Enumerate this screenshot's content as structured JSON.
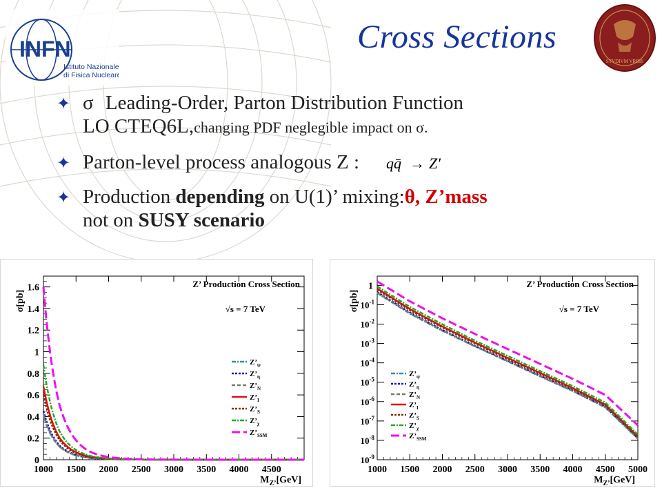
{
  "slide": {
    "title": "Cross Sections",
    "bullets": {
      "b1_sigma": "σ",
      "b1_text": "Leading-Order, Parton Distribution Function",
      "b1_line2_main": "LO CTEQ6L,",
      "b1_line2_small": "changing PDF neglegible impact on σ.",
      "b2_text": "Parton-level process analogous Z :",
      "b3_pre": "Production ",
      "b3_bold": "depending",
      "b3_mid": " on U(1)’ mixing:",
      "b3_red": "θ,  Z’mass",
      "b4_pre": "not  on ",
      "b4_bold": "SUSY scenario"
    },
    "formula": {
      "lhs": "qq̄",
      "arrow": "→",
      "rhs": "Z′"
    },
    "logo_infn": {
      "name": "INFN",
      "sub1": "Istituto Nazionale",
      "sub2": "di Fisica Nucleare"
    },
    "logo_seal": {
      "text": "STVDIVM VRBIS"
    }
  },
  "chart_data": [
    {
      "type": "line",
      "title": "Z’ Production Cross Section",
      "annotation": "√s = 7 TeV",
      "xlabel": "M_Z’[GeV]",
      "ylabel": "σ[pb]",
      "xlim": [
        1000,
        5000
      ],
      "ylim": [
        0,
        1.7
      ],
      "yscale": "linear",
      "xticks": [
        1000,
        1500,
        2000,
        2500,
        3000,
        3500,
        4000,
        4500
      ],
      "yticks": [
        {
          "v": 0,
          "label": "0"
        },
        {
          "v": 0.2,
          "label": "0.2"
        },
        {
          "v": 0.4,
          "label": "0.4"
        },
        {
          "v": 0.6,
          "label": "0.6"
        },
        {
          "v": 0.8,
          "label": "0.8"
        },
        {
          "v": 1,
          "label": "1"
        },
        {
          "v": 1.2,
          "label": "1.2"
        },
        {
          "v": 1.4,
          "label": "1.4"
        },
        {
          "v": 1.6,
          "label": "1.6"
        }
      ],
      "legend_position": "center-right",
      "x": [
        1000,
        1250,
        1500,
        1750,
        2000,
        2500,
        3000,
        3500,
        4000,
        4500,
        5000
      ],
      "series": [
        {
          "name": "Z’ψ",
          "label": "Z’",
          "sub": "ψ",
          "color": "#3a8ea0",
          "dash": "6,2,2,2",
          "width": 2.5,
          "values": [
            0.4,
            0.12,
            0.04,
            0.015,
            0.006,
            0.001,
            0.0003,
            0.0001,
            3e-05,
            1e-05,
            3e-06
          ]
        },
        {
          "name": "Z’η",
          "label": "Z’",
          "sub": "η",
          "color": "#1a1aa0",
          "dash": "3,2",
          "width": 2.5,
          "values": [
            0.45,
            0.13,
            0.045,
            0.016,
            0.006,
            0.001,
            0.0003,
            0.0001,
            3e-05,
            1e-05,
            3e-06
          ]
        },
        {
          "name": "Z’N",
          "label": "Z’",
          "sub": "N",
          "color": "#777777",
          "dash": "5,3",
          "width": 2.5,
          "values": [
            0.42,
            0.12,
            0.042,
            0.015,
            0.006,
            0.001,
            0.0003,
            0.0001,
            3e-05,
            1e-05,
            3e-06
          ]
        },
        {
          "name": "Z’I",
          "label": "Z’",
          "sub": "I",
          "color": "#e01010",
          "dash": "",
          "width": 2.5,
          "values": [
            0.68,
            0.2,
            0.07,
            0.025,
            0.01,
            0.0015,
            0.0004,
            0.0001,
            3e-05,
            1e-05,
            3e-06
          ]
        },
        {
          "name": "Z’S",
          "label": "Z’",
          "sub": "S",
          "color": "#8b2a10",
          "dash": "3,2",
          "width": 2.5,
          "values": [
            0.6,
            0.18,
            0.06,
            0.022,
            0.008,
            0.0013,
            0.0003,
            0.0001,
            3e-05,
            1e-05,
            3e-06
          ]
        },
        {
          "name": "Z’χ",
          "label": "Z’",
          "sub": "χ",
          "color": "#22aa22",
          "dash": "6,2,2,2",
          "width": 2.5,
          "values": [
            0.88,
            0.26,
            0.09,
            0.032,
            0.012,
            0.002,
            0.0005,
            0.00013,
            4e-05,
            1e-05,
            3e-06
          ]
        },
        {
          "name": "Z’SSM",
          "label": "Z’",
          "sub": "SSM",
          "color": "#ee10ee",
          "dash": "12,5",
          "width": 3,
          "values": [
            1.6,
            0.5,
            0.18,
            0.065,
            0.025,
            0.004,
            0.001,
            0.0003,
            0.0001,
            3e-05,
            1e-05
          ]
        }
      ]
    },
    {
      "type": "line",
      "title": "Z’ Production Cross Section",
      "annotation": "√s = 7 TeV",
      "xlabel": "M_Z’[GeV]",
      "ylabel": "σ[pb]",
      "xlim": [
        1000,
        5000
      ],
      "ylim": [
        1e-09,
        3
      ],
      "yscale": "log",
      "xticks": [
        1000,
        1500,
        2000,
        2500,
        3000,
        3500,
        4000,
        4500,
        5000
      ],
      "yticks": [
        {
          "v": 1,
          "label": "1"
        },
        {
          "v": 0.1,
          "base": "10",
          "exp": "-1"
        },
        {
          "v": 0.01,
          "base": "10",
          "exp": "-2"
        },
        {
          "v": 0.001,
          "base": "10",
          "exp": "-3"
        },
        {
          "v": 0.0001,
          "base": "10",
          "exp": "-4"
        },
        {
          "v": 1e-05,
          "base": "10",
          "exp": "-5"
        },
        {
          "v": 1e-06,
          "base": "10",
          "exp": "-6"
        },
        {
          "v": 1e-07,
          "base": "10",
          "exp": "-7"
        },
        {
          "v": 1e-08,
          "base": "10",
          "exp": "-8"
        },
        {
          "v": 1e-09,
          "base": "10",
          "exp": "-9"
        }
      ],
      "legend_position": "bottom-left",
      "x": [
        1000,
        1500,
        2000,
        2500,
        3000,
        3500,
        4000,
        4500,
        5000
      ],
      "series": [
        {
          "name": "Z’ψ",
          "label": "Z’",
          "sub": "ψ",
          "color": "#3a8ea0",
          "dash": "6,2,2,2",
          "width": 2.5,
          "values": [
            0.4,
            0.035,
            0.0045,
            0.0007,
            0.00012,
            2e-05,
            3.5e-06,
            5e-07,
            1.2e-08
          ]
        },
        {
          "name": "Z’η",
          "label": "Z’",
          "sub": "η",
          "color": "#1a1aa0",
          "dash": "3,2",
          "width": 2.5,
          "values": [
            0.45,
            0.04,
            0.005,
            0.00075,
            0.00013,
            2.2e-05,
            3.8e-06,
            5.5e-07,
            1.3e-08
          ]
        },
        {
          "name": "Z’N",
          "label": "Z’",
          "sub": "N",
          "color": "#777777",
          "dash": "5,3",
          "width": 2.5,
          "values": [
            0.42,
            0.037,
            0.0047,
            0.00072,
            0.000125,
            2.1e-05,
            3.6e-06,
            5.2e-07,
            1.25e-08
          ]
        },
        {
          "name": "Z’I",
          "label": "Z’",
          "sub": "I",
          "color": "#e01010",
          "dash": "",
          "width": 2.5,
          "values": [
            0.68,
            0.06,
            0.0075,
            0.0011,
            0.00018,
            3e-05,
            5e-06,
            7e-07,
            1.6e-08
          ]
        },
        {
          "name": "Z’S",
          "label": "Z’",
          "sub": "S",
          "color": "#8b2a10",
          "dash": "3,2",
          "width": 2.5,
          "values": [
            0.6,
            0.052,
            0.0066,
            0.00098,
            0.00016,
            2.7e-05,
            4.5e-06,
            6.5e-07,
            1.5e-08
          ]
        },
        {
          "name": "Z’χ",
          "label": "Z’",
          "sub": "χ",
          "color": "#22aa22",
          "dash": "6,2,2,2",
          "width": 2.5,
          "values": [
            0.88,
            0.078,
            0.0098,
            0.0014,
            0.00023,
            3.8e-05,
            6.3e-06,
            9e-07,
            2e-08
          ]
        },
        {
          "name": "Z’SSM",
          "label": "Z’",
          "sub": "SSM",
          "color": "#ee10ee",
          "dash": "12,5",
          "width": 3,
          "values": [
            1.6,
            0.15,
            0.02,
            0.0031,
            0.00052,
            8.8e-05,
            1.5e-05,
            2.2e-06,
            6e-08
          ]
        }
      ]
    }
  ]
}
